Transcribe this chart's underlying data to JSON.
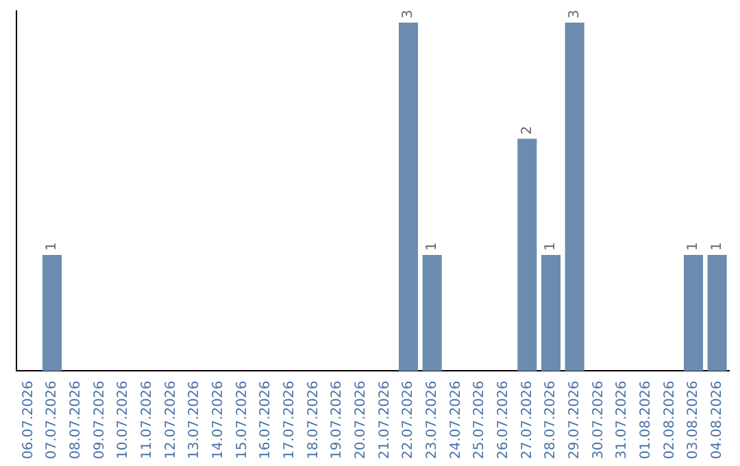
{
  "chart_data": {
    "type": "bar",
    "categories": [
      "06.07.2026",
      "07.07.2026",
      "08.07.2026",
      "09.07.2026",
      "10.07.2026",
      "11.07.2026",
      "12.07.2026",
      "13.07.2026",
      "14.07.2026",
      "15.07.2026",
      "16.07.2026",
      "17.07.2026",
      "18.07.2026",
      "19.07.2026",
      "20.07.2026",
      "21.07.2026",
      "22.07.2026",
      "23.07.2026",
      "24.07.2026",
      "25.07.2026",
      "26.07.2026",
      "27.07.2026",
      "28.07.2026",
      "29.07.2026",
      "30.07.2026",
      "31.07.2026",
      "01.08.2026",
      "02.08.2026",
      "03.08.2026",
      "04.08.2026"
    ],
    "values": [
      0,
      1,
      0,
      0,
      0,
      0,
      0,
      0,
      0,
      0,
      0,
      0,
      0,
      0,
      0,
      0,
      3,
      1,
      0,
      0,
      0,
      2,
      1,
      3,
      0,
      0,
      0,
      0,
      1,
      1
    ],
    "color": "#6b8cae",
    "ylim": [
      0,
      3.1
    ],
    "value_labels": [
      null,
      "1",
      null,
      null,
      null,
      null,
      null,
      null,
      null,
      null,
      null,
      null,
      null,
      null,
      null,
      null,
      "3",
      "1",
      null,
      null,
      null,
      "2",
      "1",
      "3",
      null,
      null,
      null,
      null,
      "1",
      "1"
    ],
    "grid": false,
    "legend": false,
    "tick_labels": "x"
  }
}
